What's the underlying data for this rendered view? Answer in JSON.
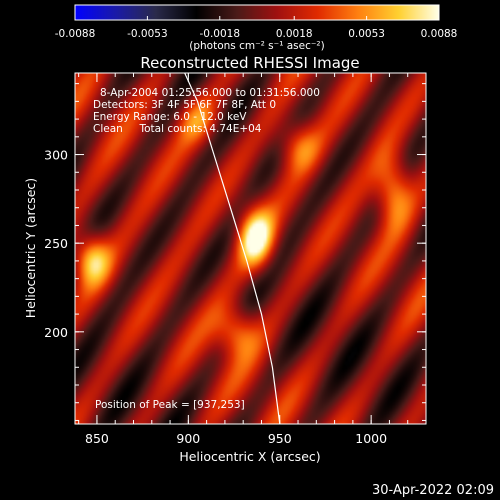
{
  "chart_data": {
    "type": "heatmap",
    "title": "Reconstructed RHESSI Image",
    "xlabel": "Heliocentric X (arcsec)",
    "ylabel": "Heliocentric Y (arcsec)",
    "xlim": [
      838,
      1030
    ],
    "ylim": [
      148,
      346
    ],
    "xticks": [
      850,
      900,
      950,
      1000
    ],
    "yticks": [
      200,
      250,
      300
    ],
    "minor_ticks": 5,
    "colorbar": {
      "units_label": "(photons cm⁻² s⁻¹ asec⁻²)",
      "range": [
        -0.0088,
        0.0088
      ],
      "tick_labels": [
        "-0.0088",
        "-0.0053",
        "-0.0018",
        "0.0018",
        "0.0053",
        "0.0088"
      ],
      "colormap_stops": [
        "#0000ff",
        "#1a1aa8",
        "#2a2a4a",
        "#000000",
        "#4a1a18",
        "#a01010",
        "#e02a00",
        "#ff8010",
        "#ffd030",
        "#ffffe8"
      ]
    },
    "annotations": [
      "8-Apr-2004 01:25:56.000 to 01:31:56.000",
      "Detectors: 3F 4F 5F 6F 7F 8F, Att 0",
      "Energy Range: 6.0 - 12.0 keV",
      "Clean     Total counts: 4.74E+04"
    ],
    "peak_label": "Position of Peak = [937,253]",
    "peak": [
      937,
      253
    ],
    "limb_points": [
      [
        898,
        346
      ],
      [
        905,
        330
      ],
      [
        914,
        300
      ],
      [
        923,
        270
      ],
      [
        932,
        240
      ],
      [
        940,
        210
      ],
      [
        946,
        180
      ],
      [
        950,
        148
      ]
    ],
    "blobs": [
      {
        "x": 937,
        "y": 253,
        "a": 1.0,
        "sx": 7,
        "sy": 12
      },
      {
        "x": 847,
        "y": 241,
        "a": 0.8,
        "sx": 7,
        "sy": 10
      },
      {
        "x": 1012,
        "y": 280,
        "a": 0.7,
        "sx": 7,
        "sy": 14
      },
      {
        "x": 926,
        "y": 200,
        "a": 0.55,
        "sx": 8,
        "sy": 10
      },
      {
        "x": 960,
        "y": 305,
        "a": 0.5,
        "sx": 8,
        "sy": 10
      },
      {
        "x": 905,
        "y": 320,
        "a": 0.45,
        "sx": 8,
        "sy": 10
      }
    ],
    "footer": "30-Apr-2022 02:09"
  }
}
